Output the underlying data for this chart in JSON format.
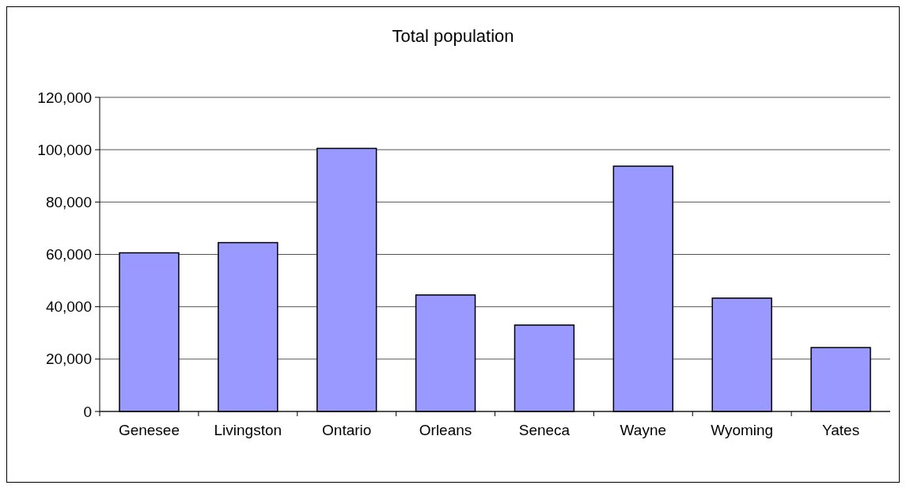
{
  "chart_data": {
    "type": "bar",
    "title": "Total population",
    "categories": [
      "Genesee",
      "Livingston",
      "Ontario",
      "Orleans",
      "Seneca",
      "Wayne",
      "Wyoming",
      "Yates"
    ],
    "values": [
      60600,
      64500,
      100500,
      44500,
      33000,
      93700,
      43300,
      24400
    ],
    "color": "#9999ff",
    "ylim": [
      0,
      120000
    ],
    "yticks": [
      {
        "value": 0,
        "label": "0"
      },
      {
        "value": 20000,
        "label": "20,000"
      },
      {
        "value": 40000,
        "label": "40,000"
      },
      {
        "value": 60000,
        "label": "60,000"
      },
      {
        "value": 80000,
        "label": "80,000"
      },
      {
        "value": 100000,
        "label": "100,000"
      },
      {
        "value": 120000,
        "label": "120,000"
      }
    ],
    "grid": "y"
  }
}
